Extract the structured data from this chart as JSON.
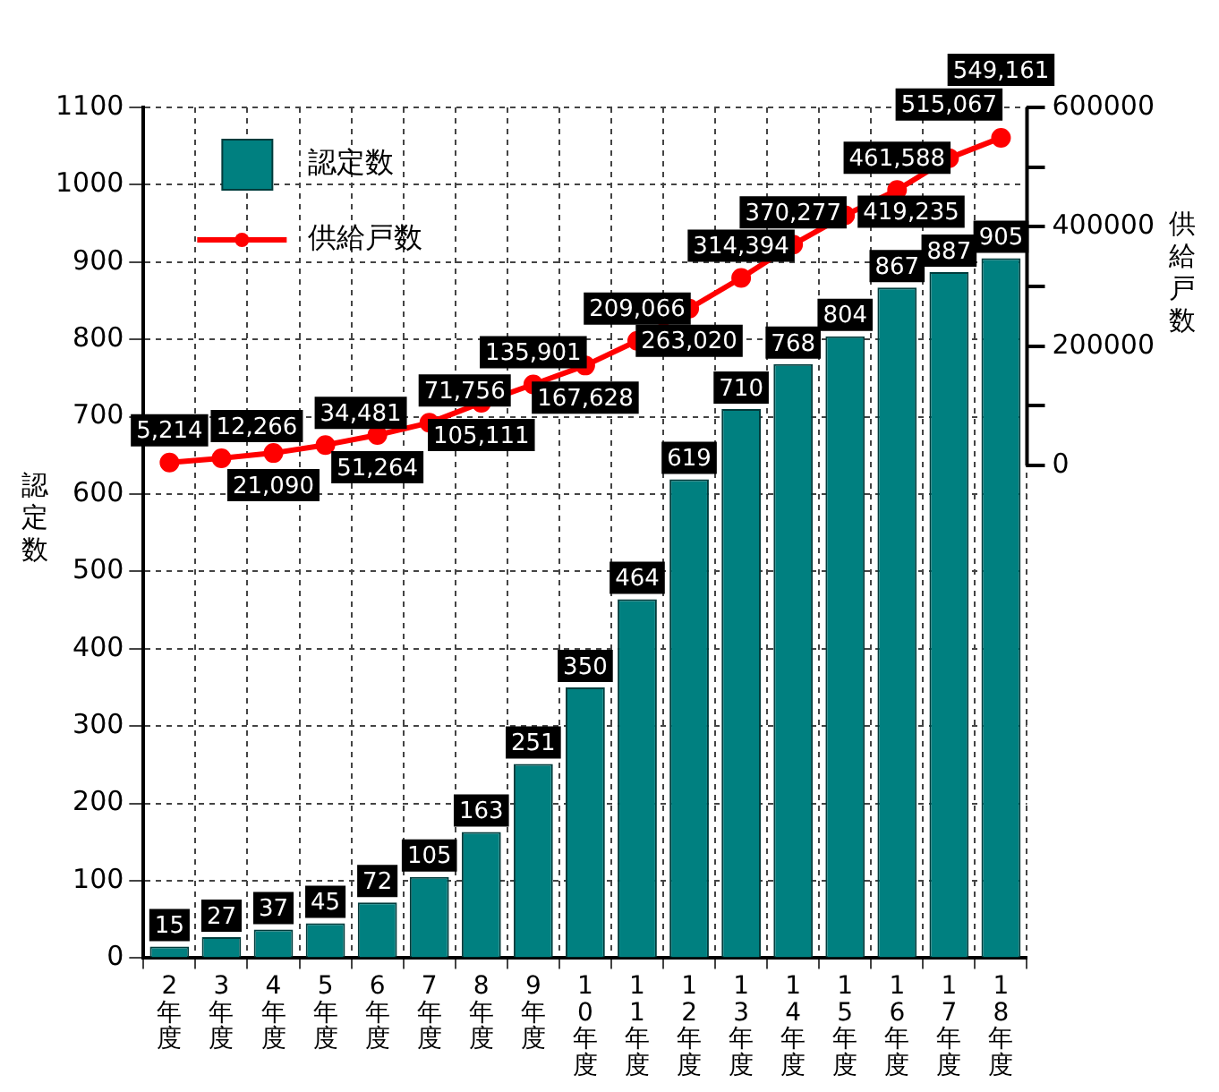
{
  "chart_data": {
    "type": "bar",
    "categories": [
      "2年度",
      "3年度",
      "4年度",
      "5年度",
      "6年度",
      "7年度",
      "8年度",
      "9年度",
      "10年度",
      "11年度",
      "12年度",
      "13年度",
      "14年度",
      "15年度",
      "16年度",
      "17年度",
      "18年度"
    ],
    "series": [
      {
        "name": "認定数",
        "color": "#008080",
        "values": [
          15,
          27,
          37,
          45,
          72,
          105,
          163,
          251,
          350,
          464,
          619,
          710,
          768,
          804,
          867,
          887,
          905
        ]
      },
      {
        "name": "供給戸数",
        "type": "line",
        "axis": "y2",
        "color": "#ff0000",
        "marker": "circle",
        "values": [
          5214,
          12266,
          21090,
          34481,
          51264,
          71756,
          105111,
          135901,
          167628,
          209066,
          263020,
          314394,
          370277,
          419235,
          461588,
          515067,
          549161
        ],
        "value_labels": [
          "5,214",
          "12,266",
          "21,090",
          "34,481",
          "51,264",
          "71,756",
          "105,111",
          "135,901",
          "167,628",
          "209,066",
          "263,020",
          "314,394",
          "370,277",
          "419,235",
          "461,588",
          "515,067",
          "549,161"
        ]
      }
    ],
    "ylabel": "認定数",
    "y2label": "供給戸数",
    "ylim": [
      0,
      1100
    ],
    "yticks": [
      0,
      100,
      200,
      300,
      400,
      500,
      600,
      700,
      800,
      900,
      1000,
      1100
    ],
    "y2lim": [
      -825000,
      600000
    ],
    "y2ticks": [
      0,
      {
        "value": 100000,
        "label": null
      },
      200000,
      {
        "value": 300000,
        "label": null
      },
      400000,
      {
        "value": 500000,
        "label": null
      },
      600000
    ],
    "grid": true,
    "legend": "top left",
    "data_labels": true
  }
}
